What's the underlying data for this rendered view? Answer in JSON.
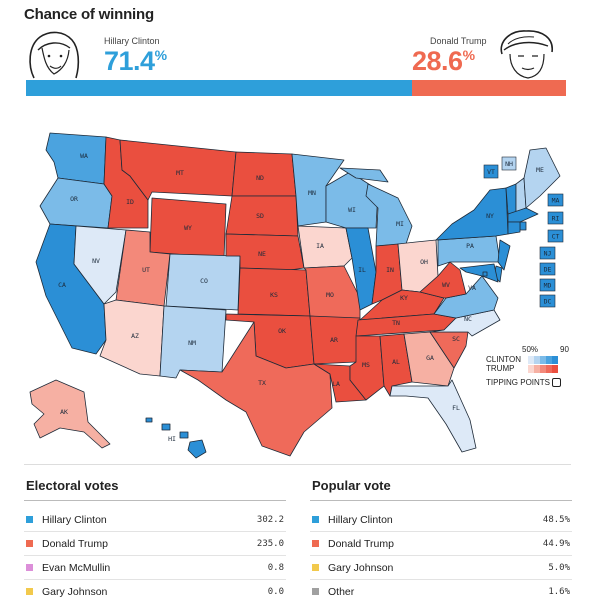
{
  "header": {
    "title": "Chance of winning"
  },
  "candidates": {
    "clinton": {
      "name": "Hillary Clinton",
      "pct_text": "71.4",
      "pct_sign": "%",
      "chance": 0.714,
      "color": "#2e9fda"
    },
    "trump": {
      "name": "Donald Trump",
      "pct_text": "28.6",
      "pct_sign": "%",
      "chance": 0.286,
      "color": "#ef6a51"
    }
  },
  "map": {
    "legend": {
      "low_label": "50%",
      "high_label": "90",
      "clinton_label": "CLINTON",
      "trump_label": "TRUMP",
      "tipping_label": "TIPPING POINTS"
    },
    "states": [
      {
        "abbr": "WA",
        "party": "clinton",
        "level": 4
      },
      {
        "abbr": "OR",
        "party": "clinton",
        "level": 3
      },
      {
        "abbr": "CA",
        "party": "clinton",
        "level": 5
      },
      {
        "abbr": "NV",
        "party": "clinton",
        "level": 1
      },
      {
        "abbr": "ID",
        "party": "trump",
        "level": 5
      },
      {
        "abbr": "MT",
        "party": "trump",
        "level": 5
      },
      {
        "abbr": "WY",
        "party": "trump",
        "level": 5
      },
      {
        "abbr": "UT",
        "party": "trump",
        "level": 3
      },
      {
        "abbr": "AZ",
        "party": "trump",
        "level": 1
      },
      {
        "abbr": "CO",
        "party": "clinton",
        "level": 2
      },
      {
        "abbr": "NM",
        "party": "clinton",
        "level": 2
      },
      {
        "abbr": "ND",
        "party": "trump",
        "level": 5
      },
      {
        "abbr": "SD",
        "party": "trump",
        "level": 5
      },
      {
        "abbr": "NE",
        "party": "trump",
        "level": 5
      },
      {
        "abbr": "KS",
        "party": "trump",
        "level": 5
      },
      {
        "abbr": "OK",
        "party": "trump",
        "level": 5
      },
      {
        "abbr": "TX",
        "party": "trump",
        "level": 4
      },
      {
        "abbr": "MN",
        "party": "clinton",
        "level": 3
      },
      {
        "abbr": "IA",
        "party": "trump",
        "level": 1
      },
      {
        "abbr": "MO",
        "party": "trump",
        "level": 4
      },
      {
        "abbr": "AR",
        "party": "trump",
        "level": 5
      },
      {
        "abbr": "LA",
        "party": "trump",
        "level": 5
      },
      {
        "abbr": "WI",
        "party": "clinton",
        "level": 3
      },
      {
        "abbr": "IL",
        "party": "clinton",
        "level": 5
      },
      {
        "abbr": "MI",
        "party": "clinton",
        "level": 3
      },
      {
        "abbr": "IN",
        "party": "trump",
        "level": 5
      },
      {
        "abbr": "OH",
        "party": "trump",
        "level": 1
      },
      {
        "abbr": "KY",
        "party": "trump",
        "level": 5
      },
      {
        "abbr": "TN",
        "party": "trump",
        "level": 5
      },
      {
        "abbr": "MS",
        "party": "trump",
        "level": 5
      },
      {
        "abbr": "AL",
        "party": "trump",
        "level": 5
      },
      {
        "abbr": "GA",
        "party": "trump",
        "level": 2
      },
      {
        "abbr": "FL",
        "party": "clinton",
        "level": 1
      },
      {
        "abbr": "SC",
        "party": "trump",
        "level": 4
      },
      {
        "abbr": "NC",
        "party": "clinton",
        "level": 1
      },
      {
        "abbr": "VA",
        "party": "clinton",
        "level": 3
      },
      {
        "abbr": "WV",
        "party": "trump",
        "level": 5
      },
      {
        "abbr": "PA",
        "party": "clinton",
        "level": 3
      },
      {
        "abbr": "NY",
        "party": "clinton",
        "level": 5
      },
      {
        "abbr": "VT",
        "party": "clinton",
        "level": 5
      },
      {
        "abbr": "NH",
        "party": "clinton",
        "level": 2
      },
      {
        "abbr": "ME",
        "party": "clinton",
        "level": 2
      },
      {
        "abbr": "MA",
        "party": "clinton",
        "level": 5
      },
      {
        "abbr": "RI",
        "party": "clinton",
        "level": 5
      },
      {
        "abbr": "CT",
        "party": "clinton",
        "level": 5
      },
      {
        "abbr": "NJ",
        "party": "clinton",
        "level": 5
      },
      {
        "abbr": "DE",
        "party": "clinton",
        "level": 5
      },
      {
        "abbr": "MD",
        "party": "clinton",
        "level": 5
      },
      {
        "abbr": "DC",
        "party": "clinton",
        "level": 5
      },
      {
        "abbr": "AK",
        "party": "trump",
        "level": 2
      },
      {
        "abbr": "HI",
        "party": "clinton",
        "level": 5
      }
    ]
  },
  "electoral_votes": {
    "title": "Electoral votes",
    "rows": [
      {
        "name": "Hillary Clinton",
        "value": "302.2",
        "color": "#2e9fda"
      },
      {
        "name": "Donald Trump",
        "value": "235.0",
        "color": "#ef6a51"
      },
      {
        "name": "Evan McMullin",
        "value": "0.8",
        "color": "#dc8fd9"
      },
      {
        "name": "Gary Johnson",
        "value": "0.0",
        "color": "#f2c94c"
      }
    ]
  },
  "popular_vote": {
    "title": "Popular vote",
    "rows": [
      {
        "name": "Hillary Clinton",
        "value": "48.5%",
        "color": "#2e9fda"
      },
      {
        "name": "Donald Trump",
        "value": "44.9%",
        "color": "#ef6a51"
      },
      {
        "name": "Gary Johnson",
        "value": "5.0%",
        "color": "#f2c94c"
      },
      {
        "name": "Other",
        "value": "1.6%",
        "color": "#a0a0a0"
      }
    ]
  },
  "palette": {
    "clinton": [
      "#dde9f7",
      "#b4d4f0",
      "#7bbbe8",
      "#4ba3df",
      "#2b8fd6"
    ],
    "trump": [
      "#fbd6cf",
      "#f6b0a3",
      "#f3897a",
      "#ef6a5a",
      "#ea4f3f"
    ]
  }
}
